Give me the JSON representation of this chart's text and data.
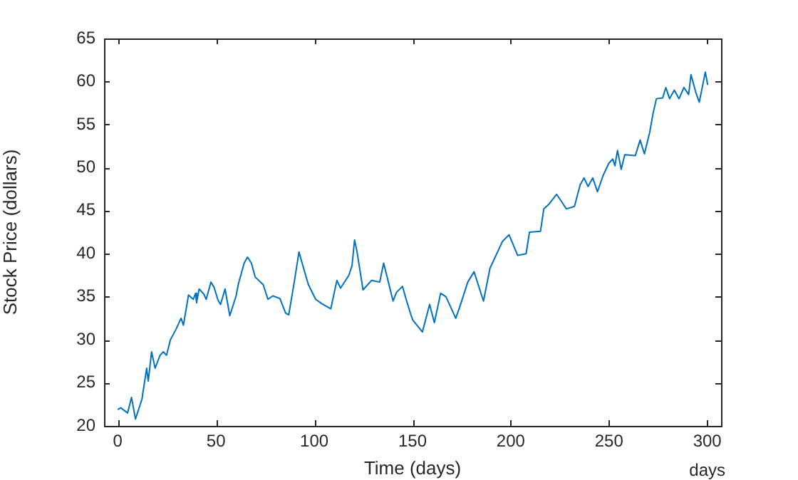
{
  "chart_data": {
    "type": "line",
    "xlabel": "Time (days)",
    "ylabel": "Stock Price (dollars)",
    "annotations": [
      "days"
    ],
    "xlim": [
      -7,
      307
    ],
    "ylim": [
      20,
      65
    ],
    "xticks": [
      0,
      50,
      100,
      150,
      200,
      250,
      300
    ],
    "yticks": [
      20,
      25,
      30,
      35,
      40,
      45,
      50,
      55,
      60,
      65
    ],
    "grid": false,
    "legend": false,
    "series": [
      {
        "color": "#0072bd",
        "x": [
          0,
          1.5,
          5,
          7,
          9,
          12.3,
          14.7,
          15.5,
          17.2,
          19,
          21.5,
          23.2,
          24.8,
          26.8,
          29.8,
          32.2,
          33.4,
          36,
          38.4,
          39.6,
          40.1,
          41.4,
          43.8,
          45,
          47.4,
          49,
          51,
          52.3,
          54.6,
          57,
          60.2,
          61.4,
          64.3,
          66,
          68,
          69.9,
          74,
          76.4,
          78.9,
          82.5,
          85.4,
          87,
          89.8,
          92.2,
          94.2,
          97,
          100.7,
          103.8,
          108.4,
          111.5,
          113.4,
          117.6,
          119.2,
          120.5,
          121.7,
          124.8,
          129.2,
          133.3,
          135.3,
          140.1,
          141.8,
          144.9,
          146.6,
          148.9,
          150.1,
          155,
          158.7,
          161.1,
          164.3,
          167,
          172,
          174,
          178.1,
          181.3,
          186.1,
          189.4,
          195.7,
          199.1,
          203.5,
          207.8,
          209.5,
          215.1,
          216.8,
          219.2,
          223.3,
          225.7,
          228.3,
          232.4,
          235.3,
          237.3,
          239.3,
          241.7,
          244.1,
          247,
          249.9,
          251.9,
          253,
          254.3,
          256.2,
          258,
          263.4,
          265.8,
          268,
          270.7,
          272.4,
          274.1,
          277.3,
          278.9,
          280.8,
          283.2,
          285.6,
          288.1,
          290.5,
          291.7,
          294.2,
          295.9,
          299,
          300.2
        ],
        "values": [
          21.9,
          22.1,
          21.5,
          23.3,
          20.8,
          23.1,
          26.7,
          25.2,
          28.6,
          26.7,
          28.2,
          28.6,
          28.2,
          30.0,
          31.3,
          32.5,
          31.7,
          35.2,
          34.7,
          35.4,
          34.3,
          35.9,
          35.3,
          34.7,
          36.7,
          36.1,
          34.6,
          34.1,
          35.9,
          32.8,
          35.1,
          36.5,
          38.9,
          39.6,
          38.9,
          37.3,
          36.4,
          34.7,
          35.1,
          34.8,
          33.1,
          32.9,
          36.7,
          40.2,
          38.6,
          36.4,
          34.7,
          34.2,
          33.6,
          36.9,
          36.0,
          37.5,
          38.6,
          41.6,
          40.3,
          35.8,
          36.9,
          36.7,
          38.9,
          34.5,
          35.5,
          36.2,
          34.8,
          33.1,
          32.3,
          30.9,
          34.1,
          32.0,
          35.4,
          35.0,
          32.5,
          33.8,
          36.7,
          37.9,
          34.5,
          38.3,
          41.4,
          42.2,
          39.8,
          40.0,
          42.5,
          42.6,
          45.2,
          45.7,
          46.9,
          46.1,
          45.2,
          45.5,
          48.0,
          48.8,
          47.8,
          48.8,
          47.2,
          49.1,
          50.5,
          51.0,
          50.2,
          52.0,
          49.8,
          51.5,
          51.4,
          53.2,
          51.6,
          54.1,
          56.3,
          58.0,
          58.1,
          59.3,
          58.0,
          59.0,
          58.0,
          59.3,
          58.5,
          60.8,
          58.7,
          57.6,
          61.1,
          59.6
        ]
      }
    ]
  }
}
